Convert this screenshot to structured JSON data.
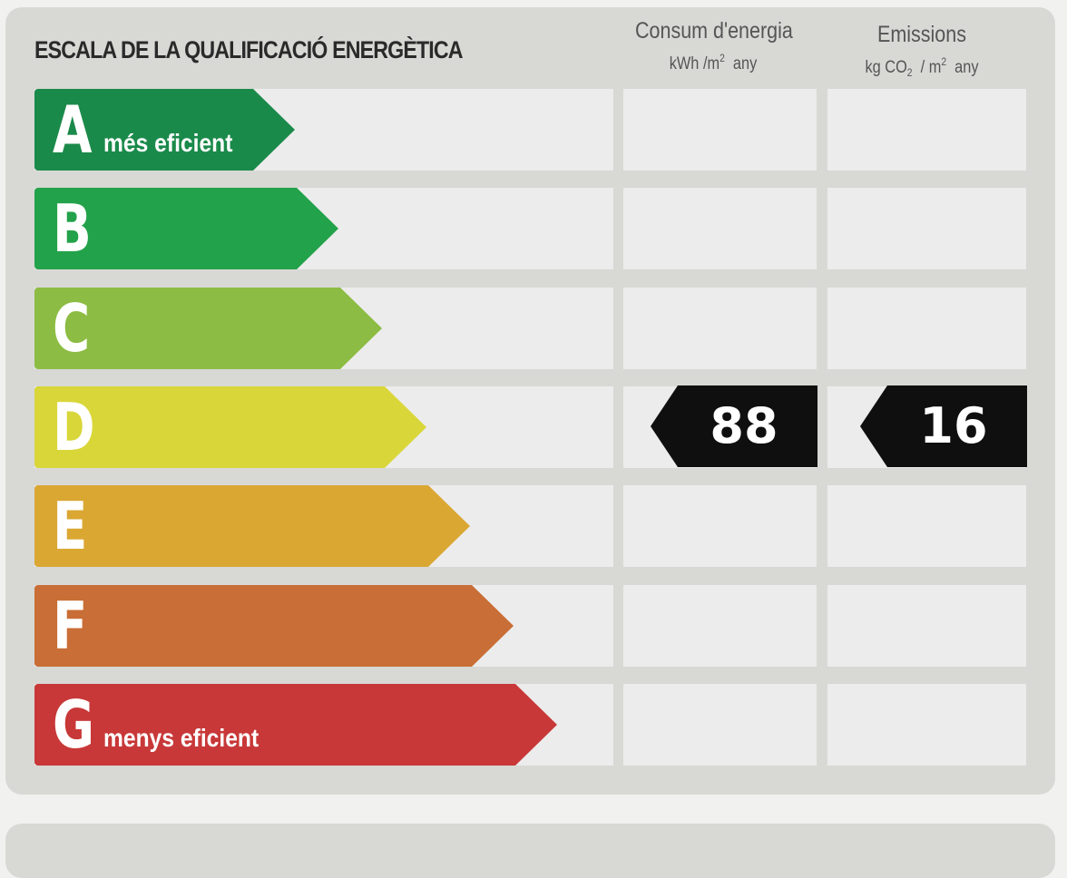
{
  "title": "ESCALA DE LA QUALIFICACIÓ ENERGÈTICA",
  "columns": {
    "energy": {
      "label": "Consum d'energia",
      "unit_prefix": "kWh /m",
      "unit_exp": "2",
      "unit_suffix": "any"
    },
    "emissions": {
      "label": "Emissions",
      "unit_a": "kg CO",
      "unit_sub": "2",
      "unit_b": "/ m",
      "unit_exp": "2",
      "unit_suffix": "any"
    }
  },
  "ratings": [
    {
      "letter": "A",
      "color": "#1a8a4a",
      "sublabel": "més eficient"
    },
    {
      "letter": "B",
      "color": "#22a24a",
      "sublabel": ""
    },
    {
      "letter": "C",
      "color": "#8cbc43",
      "sublabel": ""
    },
    {
      "letter": "D",
      "color": "#d9d63a",
      "sublabel": ""
    },
    {
      "letter": "E",
      "color": "#daa732",
      "sublabel": ""
    },
    {
      "letter": "F",
      "color": "#c96e36",
      "sublabel": ""
    },
    {
      "letter": "G",
      "color": "#c83838",
      "sublabel": "menys eficient"
    }
  ],
  "result": {
    "rating": "D",
    "energy_value": "88",
    "emissions_value": "16"
  }
}
